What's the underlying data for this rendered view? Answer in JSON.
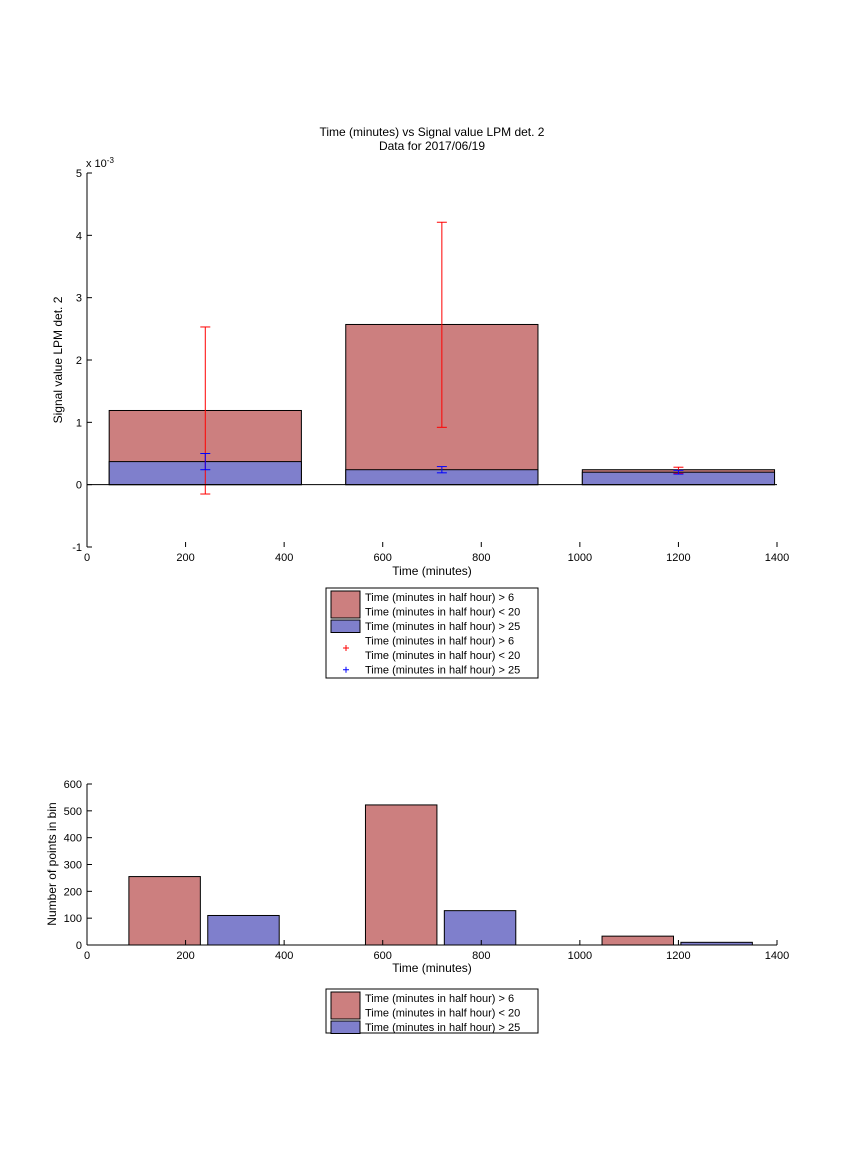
{
  "chart_data": [
    {
      "type": "bar",
      "title": "Time (minutes) vs Signal value LPM det. 2",
      "subtitle": "Data for 2017/06/19",
      "xlabel": "Time (minutes)",
      "ylabel": "Signal value LPM det. 2",
      "y_multiplier": "x 10",
      "y_exponent": "-3",
      "xlim": [
        0,
        1400
      ],
      "ylim": [
        -1,
        5
      ],
      "x_ticks": [
        "0",
        "200",
        "400",
        "600",
        "800",
        "1000",
        "1200",
        "1400"
      ],
      "y_ticks": [
        "-1",
        "0",
        "1",
        "2",
        "3",
        "4",
        "5"
      ],
      "bar_ranges": [
        [
          45,
          435
        ],
        [
          525,
          915
        ],
        [
          1005,
          1395
        ]
      ],
      "series": [
        {
          "name": "Time (minutes in half hour) > 6\nTime (minutes in half hour) < 20",
          "color": "#cc7f7f",
          "values": [
            1.19,
            2.57,
            0.24
          ]
        },
        {
          "name": "Time (minutes in half hour) > 25",
          "color": "#7f7fcc",
          "values": [
            0.37,
            0.24,
            0.2
          ]
        }
      ],
      "error_bars": [
        {
          "name": "Time (minutes in half hour) > 6\nTime (minutes in half hour) < 20",
          "color": "#ff0000",
          "x": [
            240,
            720,
            1200
          ],
          "low": [
            -0.15,
            0.92,
            0.18
          ],
          "high": [
            2.53,
            4.21,
            0.28
          ]
        },
        {
          "name": "Time (minutes in half hour) > 25",
          "color": "#0000ff",
          "x": [
            240,
            720,
            1200
          ],
          "low": [
            0.24,
            0.19,
            0.17
          ],
          "high": [
            0.5,
            0.29,
            0.23
          ]
        }
      ],
      "legend": [
        {
          "type": "patch",
          "color": "#cc7f7f",
          "lines": [
            "Time (minutes in half hour) > 6",
            "Time (minutes in half hour) < 20"
          ]
        },
        {
          "type": "patch",
          "color": "#7f7fcc",
          "lines": [
            "Time (minutes in half hour) > 25"
          ]
        },
        {
          "type": "marker",
          "color": "#ff0000",
          "lines": [
            "Time (minutes in half hour) > 6",
            "Time (minutes in half hour) < 20"
          ]
        },
        {
          "type": "marker",
          "color": "#0000ff",
          "lines": [
            "Time (minutes in half hour) > 25"
          ]
        }
      ]
    },
    {
      "type": "bar",
      "xlabel": "Time (minutes)",
      "ylabel": "Number of points in bin",
      "xlim": [
        0,
        1400
      ],
      "ylim": [
        0,
        600
      ],
      "x_ticks": [
        "0",
        "200",
        "400",
        "600",
        "800",
        "1000",
        "1200",
        "1400"
      ],
      "y_ticks": [
        "0",
        "100",
        "200",
        "300",
        "400",
        "500",
        "600"
      ],
      "bars": [
        {
          "x0": 85,
          "x1": 230,
          "value": 255,
          "color": "#cc7f7f"
        },
        {
          "x0": 245,
          "x1": 390,
          "value": 110,
          "color": "#7f7fcc"
        },
        {
          "x0": 565,
          "x1": 710,
          "value": 522,
          "color": "#cc7f7f"
        },
        {
          "x0": 725,
          "x1": 870,
          "value": 128,
          "color": "#7f7fcc"
        },
        {
          "x0": 1045,
          "x1": 1190,
          "value": 33,
          "color": "#cc7f7f"
        },
        {
          "x0": 1205,
          "x1": 1350,
          "value": 10,
          "color": "#7f7fcc"
        }
      ],
      "legend": [
        {
          "type": "patch",
          "color": "#cc7f7f",
          "lines": [
            "Time (minutes in half hour) > 6",
            "Time (minutes in half hour) < 20"
          ]
        },
        {
          "type": "patch",
          "color": "#7f7fcc",
          "lines": [
            "Time (minutes in half hour) > 25"
          ]
        }
      ]
    }
  ]
}
